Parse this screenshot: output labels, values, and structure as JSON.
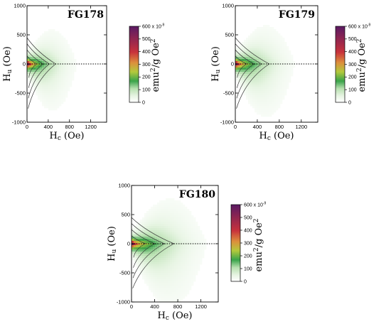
{
  "chart_data": [
    {
      "type": "heatmap",
      "title": "FG178",
      "xlabel_main": "H",
      "xlabel_sub": "c",
      "xlabel_unit": " (Oe)",
      "ylabel_main": "H",
      "ylabel_sub": "u",
      "ylabel_unit": " (Oe)",
      "xlim": [
        0,
        1500
      ],
      "ylim": [
        -1000,
        1000
      ],
      "x_ticks": [
        0,
        400,
        800,
        1200
      ],
      "y_ticks": [
        -1000,
        -500,
        0,
        500,
        1000
      ],
      "peak_hc": 15,
      "spread_hc": 520,
      "spread_hu": 420,
      "colorbar": {
        "range": [
          0,
          600
        ],
        "ticks": [
          0,
          100,
          200,
          300,
          400,
          500,
          600
        ],
        "top_label": "600 x 10",
        "top_exp": "-9",
        "unit_main": "emu",
        "unit_sup1": "2",
        "unit_mid": "/g Oe",
        "unit_sup2": "2"
      }
    },
    {
      "type": "heatmap",
      "title": "FG179",
      "xlabel_main": "H",
      "xlabel_sub": "c",
      "xlabel_unit": " (Oe)",
      "ylabel_main": "H",
      "ylabel_sub": "u",
      "ylabel_unit": " (Oe)",
      "xlim": [
        0,
        1500
      ],
      "ylim": [
        -1000,
        1000
      ],
      "x_ticks": [
        0,
        400,
        800,
        1200
      ],
      "y_ticks": [
        -1000,
        -500,
        0,
        500,
        1000
      ],
      "peak_hc": 15,
      "spread_hc": 600,
      "spread_hu": 430,
      "colorbar": {
        "range": [
          0,
          600
        ],
        "ticks": [
          0,
          100,
          200,
          300,
          400,
          500,
          600
        ],
        "top_label": "600 x 10",
        "top_exp": "-9",
        "unit_main": "emu",
        "unit_sup1": "2",
        "unit_mid": "/g Oe",
        "unit_sup2": "2"
      }
    },
    {
      "type": "heatmap",
      "title": "FG180",
      "xlabel_main": "H",
      "xlabel_sub": "c",
      "xlabel_unit": " (Oe)",
      "ylabel_main": "H",
      "ylabel_sub": "u",
      "ylabel_unit": " (Oe)",
      "xlim": [
        0,
        1500
      ],
      "ylim": [
        -1000,
        1000
      ],
      "x_ticks": [
        0,
        400,
        800,
        1200
      ],
      "y_ticks": [
        -1000,
        -500,
        0,
        500,
        1000
      ],
      "peak_hc": 15,
      "spread_hc": 720,
      "spread_hu": 440,
      "colorbar": {
        "range": [
          0,
          600
        ],
        "ticks": [
          0,
          100,
          200,
          300,
          400,
          500,
          600
        ],
        "top_label": "600 x 10",
        "top_exp": "-9",
        "unit_main": "emu",
        "unit_sup1": "2",
        "unit_mid": "/g Oe",
        "unit_sup2": "2"
      }
    }
  ],
  "colors": {
    "zero": "#ffffff",
    "low": "#e8f5e4",
    "green": "#3aa34a",
    "yellow_green": "#b3c93c",
    "orange": "#dc8f3c",
    "red": "#c8323c",
    "purple": "#5a1a63"
  }
}
